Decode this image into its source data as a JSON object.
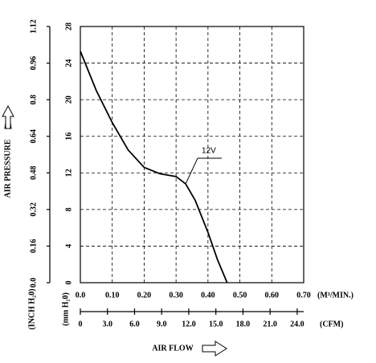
{
  "chart_data": {
    "type": "line",
    "y_title": "AIR PRESSURE",
    "x_title": "AIR FLOW",
    "x_unit": "(M³/MIN.)",
    "x2_unit": "(CFM)",
    "y_unit": "(mm H₂0)",
    "y2_unit": "(INCH H₂0)",
    "x": [
      0,
      0.05,
      0.1,
      0.15,
      0.2,
      0.25,
      0.3,
      0.33,
      0.36,
      0.4,
      0.43,
      0.46
    ],
    "series": [
      {
        "name": "12V",
        "color": "#000000",
        "values": [
          25.3,
          21,
          17.5,
          14.5,
          12.6,
          11.9,
          11.6,
          10.8,
          9,
          5.5,
          2.5,
          0
        ]
      }
    ],
    "xlim": [
      0,
      0.7
    ],
    "xticks": [
      {
        "value": 0,
        "label": "0.0"
      },
      {
        "value": 0.1,
        "label": "0.10"
      },
      {
        "value": 0.2,
        "label": "0.20"
      },
      {
        "value": 0.3,
        "label": "0.30"
      },
      {
        "value": 0.4,
        "label": "0.40"
      },
      {
        "value": 0.5,
        "label": "0.50"
      },
      {
        "value": 0.6,
        "label": "0.60"
      },
      {
        "value": 0.7,
        "label": "0.70"
      }
    ],
    "x2lim": [
      0,
      24.72
    ],
    "x2ticks": [
      0,
      {
        "value": 3,
        "label": "3.0"
      },
      {
        "value": 6,
        "label": "6.0"
      },
      {
        "value": 9,
        "label": "9.0"
      },
      {
        "value": 12,
        "label": "12.0"
      },
      {
        "value": 15,
        "label": "15.0"
      },
      {
        "value": 18,
        "label": "18.0"
      },
      {
        "value": 21,
        "label": "21.0"
      },
      {
        "value": 24,
        "label": "24.0"
      }
    ],
    "ylim": [
      0,
      28
    ],
    "yticks": [
      0,
      4,
      8,
      12,
      16,
      20,
      24,
      28
    ],
    "y2lim": [
      0,
      1.12
    ],
    "y2ticks": [
      {
        "value": 0,
        "label": "0.0"
      },
      0.16,
      0.32,
      0.48,
      0.64,
      0.8,
      0.96,
      1.12
    ],
    "grid": true
  }
}
